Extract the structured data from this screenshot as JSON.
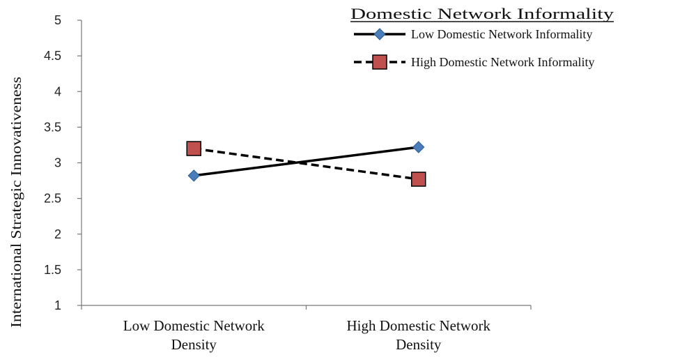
{
  "chart_data": {
    "type": "line",
    "categories": [
      "Low Domestic Network Density",
      "High Domestic Network Density"
    ],
    "category_lines": [
      [
        "Low Domestic Network",
        "Density"
      ],
      [
        "High Domestic Network",
        "Density"
      ]
    ],
    "ylabel": "International Strategic Innovativeness",
    "ylim": [
      1,
      5
    ],
    "yticks": [
      "1",
      "1.5",
      "2",
      "2.5",
      "3",
      "3.5",
      "4",
      "4.5",
      "5"
    ],
    "ytick_values": [
      1,
      1.5,
      2,
      2.5,
      3,
      3.5,
      4,
      4.5,
      5
    ],
    "grid": false,
    "legend": {
      "title": "Domestic  Network Informality",
      "placement": "top-right"
    },
    "series": [
      {
        "name": "Low Domestic Network Informality",
        "values": [
          2.82,
          3.22
        ],
        "line_style": "solid",
        "marker": "diamond",
        "marker_color": "#4a7ebb",
        "line_color": "#000000"
      },
      {
        "name": "High Domestic Network Informality",
        "values": [
          3.2,
          2.77
        ],
        "line_style": "dashed",
        "marker": "square",
        "marker_color": "#c0504d",
        "line_color": "#000000"
      }
    ]
  }
}
